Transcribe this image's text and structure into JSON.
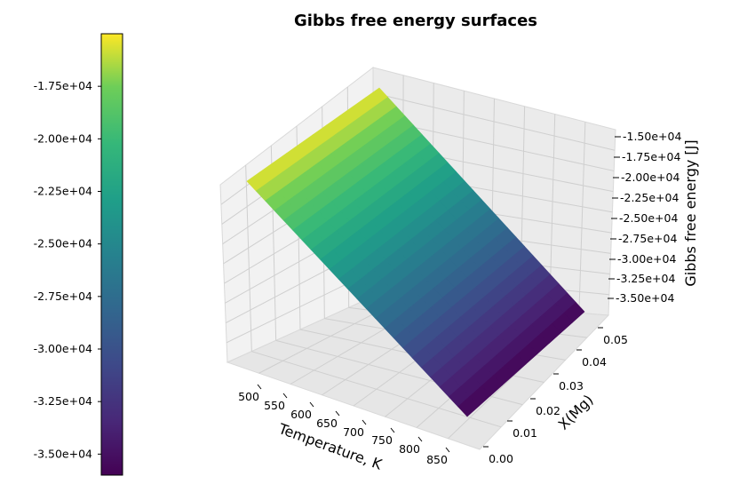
{
  "chart_data": {
    "type": "surface3d",
    "title": "Gibbs free energy surfaces",
    "xlabel": "Temperature, K",
    "ylabel": "X(Mg)",
    "zlabel": "Gibbs free energy [J]",
    "x_ticks": [
      "500",
      "550",
      "600",
      "650",
      "700",
      "750",
      "800",
      "850"
    ],
    "y_ticks": [
      "0.00",
      "0.01",
      "0.02",
      "0.03",
      "0.04",
      "0.05"
    ],
    "z_ticks": [
      "-1.50e+04",
      "-1.75e+04",
      "-2.00e+04",
      "-2.25e+04",
      "-2.50e+04",
      "-2.75e+04",
      "-3.00e+04",
      "-3.25e+04",
      "-3.50e+04"
    ],
    "colorbar_ticks": [
      "-1.75e+04",
      "-2.00e+04",
      "-2.25e+04",
      "-2.50e+04",
      "-2.75e+04",
      "-3.00e+04",
      "-3.25e+04",
      "-3.50e+04"
    ],
    "colorbar_values": [
      -17500,
      -20000,
      -22500,
      -25000,
      -27500,
      -30000,
      -32500,
      -35000
    ],
    "colorbar_range": [
      -36000,
      -15000
    ],
    "colormap": "viridis",
    "surface": {
      "x_range": [
        473,
        873
      ],
      "y_range": [
        0.0,
        0.05
      ],
      "z_at_xmin": -15400,
      "z_at_xmax": -35800
    },
    "grid": true
  }
}
